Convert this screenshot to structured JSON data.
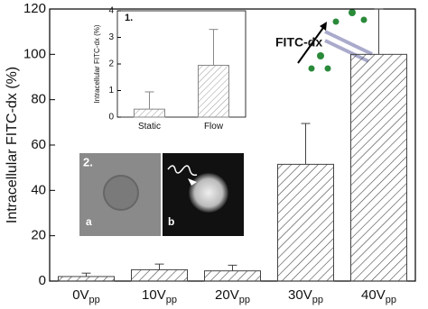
{
  "chart_data": [
    {
      "type": "bar",
      "ylabel": "Intracellular FITC-dx (%)",
      "categories": [
        "0V",
        "10V",
        "20V",
        "30V",
        "40V"
      ],
      "category_subscript": "pp",
      "values": [
        2,
        5,
        4.5,
        51.5,
        100
      ],
      "errors": [
        1.5,
        2.5,
        2.5,
        18,
        20
      ],
      "ylim": [
        0,
        120
      ],
      "yticks": [
        0,
        20,
        40,
        60,
        80,
        100,
        120
      ],
      "color": "#444444",
      "annotations": [
        "FITC-dx",
        "2.",
        "a",
        "b"
      ]
    },
    {
      "type": "bar",
      "title": "1.",
      "ylabel": "Intracellular FITC-dx (%)",
      "categories": [
        "Static",
        "Flow"
      ],
      "values": [
        0.3,
        1.95
      ],
      "errors": [
        0.65,
        1.35
      ],
      "ylim": [
        0,
        4
      ],
      "yticks": [
        0,
        1,
        2,
        3,
        4
      ],
      "color": "#888888"
    }
  ]
}
